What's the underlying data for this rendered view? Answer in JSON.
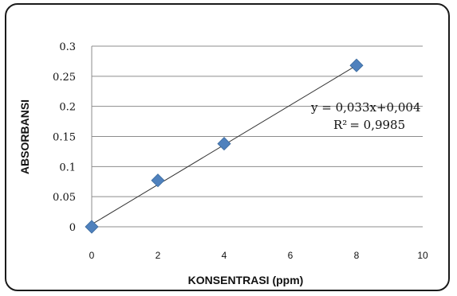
{
  "chart_data": {
    "type": "scatter",
    "x": [
      0,
      2,
      4,
      8
    ],
    "y": [
      0,
      0.077,
      0.138,
      0.268
    ],
    "xlabel": "KONSENTRASI (ppm)",
    "ylabel": "ABSORBANSI",
    "xlim": [
      0,
      10
    ],
    "ylim": [
      0,
      0.3
    ],
    "xticks": [
      "0",
      "2",
      "4",
      "6",
      "8",
      "10"
    ],
    "yticks": [
      "0",
      "0.05",
      "0.1",
      "0.15",
      "0.2",
      "0.25",
      "0.3"
    ],
    "grid": "horizontal",
    "trendline": {
      "slope": 0.033,
      "intercept": 0.004,
      "equation": "y = 0,033x+0,004",
      "r2_label": "R²",
      "r2_value": "= 0,9985"
    },
    "marker_color": "#4f81bd",
    "line_color": "#333333"
  }
}
